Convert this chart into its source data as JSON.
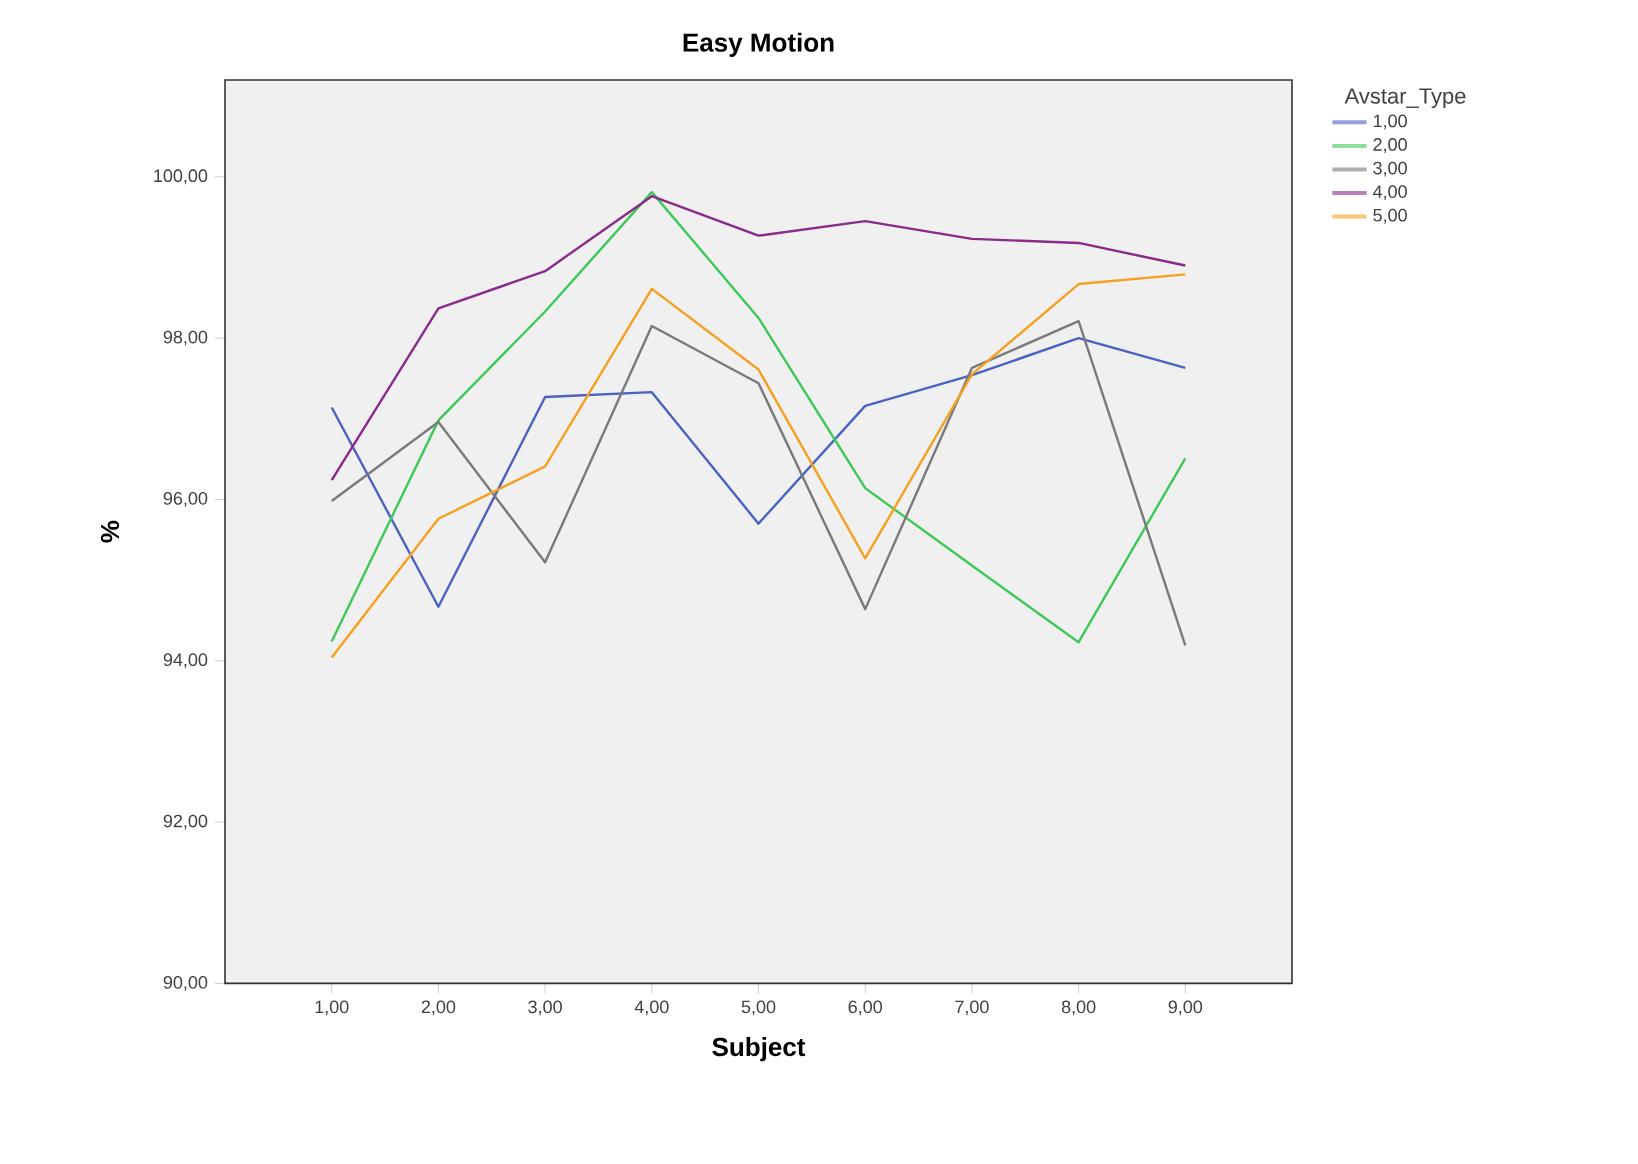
{
  "chart_data": {
    "type": "line",
    "title": "Easy Motion",
    "xlabel": "Subject",
    "ylabel": "%",
    "legend_title": "Avstar_Type",
    "legend": "right",
    "grid": false,
    "marker": "none",
    "line_style": "solid",
    "x": [
      1,
      2,
      3,
      4,
      5,
      6,
      7,
      8,
      9
    ],
    "xlim": [
      0,
      10
    ],
    "ylim": [
      90,
      101.2
    ],
    "xticks": [
      {
        "value": 1,
        "label": "1,00"
      },
      {
        "value": 2,
        "label": "2,00"
      },
      {
        "value": 3,
        "label": "3,00"
      },
      {
        "value": 4,
        "label": "4,00"
      },
      {
        "value": 5,
        "label": "5,00"
      },
      {
        "value": 6,
        "label": "6,00"
      },
      {
        "value": 7,
        "label": "7,00"
      },
      {
        "value": 8,
        "label": "8,00"
      },
      {
        "value": 9,
        "label": "9,00"
      }
    ],
    "yticks": [
      {
        "value": 90,
        "label": "90,00"
      },
      {
        "value": 92,
        "label": "92,00"
      },
      {
        "value": 94,
        "label": "94,00"
      },
      {
        "value": 96,
        "label": "96,00"
      },
      {
        "value": 98,
        "label": "98,00"
      },
      {
        "value": 100,
        "label": "100,00"
      }
    ],
    "series": [
      {
        "name": "1,00",
        "color": "#4a63c0",
        "values": [
          97.14,
          94.67,
          97.27,
          97.33,
          95.7,
          97.16,
          97.54,
          98.0,
          97.63
        ]
      },
      {
        "name": "2,00",
        "color": "#3ec858",
        "values": [
          94.24,
          96.98,
          98.33,
          99.81,
          98.25,
          96.14,
          95.18,
          94.23,
          96.51
        ]
      },
      {
        "name": "3,00",
        "color": "#7a7a7a",
        "values": [
          95.98,
          96.96,
          95.22,
          98.15,
          97.44,
          94.64,
          97.63,
          98.21,
          94.19
        ]
      },
      {
        "name": "4,00",
        "color": "#8a2a8a",
        "values": [
          96.24,
          98.37,
          98.83,
          99.76,
          99.27,
          99.45,
          99.23,
          99.18,
          98.9
        ]
      },
      {
        "name": "5,00",
        "color": "#f4a020",
        "values": [
          94.04,
          95.76,
          96.41,
          98.61,
          97.61,
          95.27,
          97.55,
          98.67,
          98.79
        ]
      }
    ]
  }
}
